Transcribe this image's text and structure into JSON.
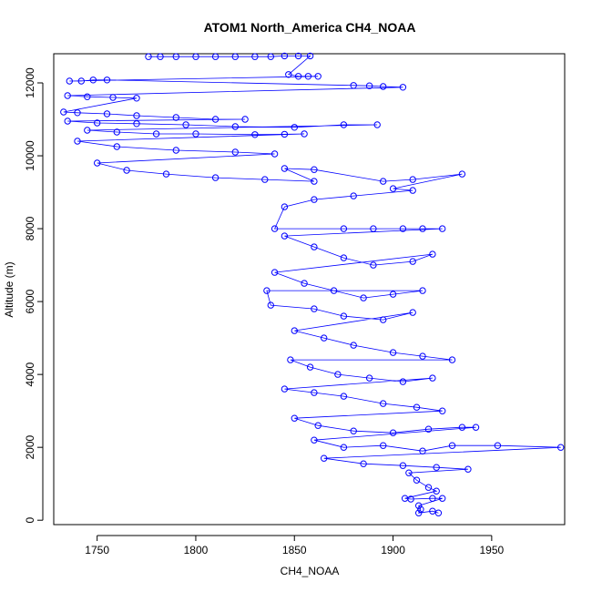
{
  "chart_data": {
    "type": "scatter",
    "title": "ATOM1 North_America CH4_NOAA",
    "xlabel": "CH4_NOAA",
    "ylabel": "Altitude (m)",
    "xlim": [
      1728,
      1987
    ],
    "ylim": [
      -120,
      12800
    ],
    "x_ticks": [
      1750,
      1800,
      1850,
      1900,
      1950
    ],
    "y_ticks": [
      0,
      2000,
      4000,
      6000,
      8000,
      10000,
      12000
    ],
    "grid": false,
    "legend": "none",
    "point_style": "open-circle",
    "color": "#0000ff",
    "series": [
      {
        "points": [
          [
            1776,
            12720
          ],
          [
            1782,
            12720
          ],
          [
            1790,
            12720
          ],
          [
            1800,
            12720
          ],
          [
            1810,
            12720
          ],
          [
            1820,
            12720
          ],
          [
            1830,
            12720
          ],
          [
            1838,
            12720
          ],
          [
            1845,
            12740
          ],
          [
            1852,
            12740
          ],
          [
            1858,
            12740
          ],
          [
            1847,
            12230
          ],
          [
            1852,
            12180
          ],
          [
            1857,
            12180
          ],
          [
            1862,
            12180
          ],
          [
            1736,
            12050
          ],
          [
            1742,
            12050
          ],
          [
            1748,
            12080
          ],
          [
            1755,
            12080
          ],
          [
            1880,
            11930
          ],
          [
            1888,
            11920
          ],
          [
            1895,
            11900
          ],
          [
            1905,
            11880
          ],
          [
            1735,
            11650
          ],
          [
            1745,
            11620
          ],
          [
            1758,
            11600
          ],
          [
            1770,
            11580
          ],
          [
            1733,
            11200
          ],
          [
            1740,
            11180
          ],
          [
            1755,
            11150
          ],
          [
            1770,
            11100
          ],
          [
            1790,
            11050
          ],
          [
            1810,
            11000
          ],
          [
            1825,
            11000
          ],
          [
            1735,
            10950
          ],
          [
            1750,
            10900
          ],
          [
            1770,
            10880
          ],
          [
            1795,
            10850
          ],
          [
            1820,
            10800
          ],
          [
            1850,
            10780
          ],
          [
            1875,
            10850
          ],
          [
            1892,
            10850
          ],
          [
            1745,
            10700
          ],
          [
            1760,
            10650
          ],
          [
            1780,
            10600
          ],
          [
            1800,
            10600
          ],
          [
            1830,
            10580
          ],
          [
            1845,
            10590
          ],
          [
            1855,
            10600
          ],
          [
            1740,
            10400
          ],
          [
            1760,
            10250
          ],
          [
            1790,
            10150
          ],
          [
            1820,
            10100
          ],
          [
            1840,
            10050
          ],
          [
            1750,
            9800
          ],
          [
            1765,
            9600
          ],
          [
            1785,
            9500
          ],
          [
            1810,
            9400
          ],
          [
            1835,
            9350
          ],
          [
            1860,
            9300
          ],
          [
            1845,
            9650
          ],
          [
            1860,
            9620
          ],
          [
            1895,
            9300
          ],
          [
            1910,
            9350
          ],
          [
            1935,
            9500
          ],
          [
            1900,
            9100
          ],
          [
            1910,
            9050
          ],
          [
            1880,
            8900
          ],
          [
            1860,
            8800
          ],
          [
            1845,
            8600
          ],
          [
            1840,
            8000
          ],
          [
            1875,
            8000
          ],
          [
            1890,
            8000
          ],
          [
            1905,
            8000
          ],
          [
            1915,
            8000
          ],
          [
            1925,
            8000
          ],
          [
            1845,
            7800
          ],
          [
            1860,
            7500
          ],
          [
            1875,
            7200
          ],
          [
            1890,
            7000
          ],
          [
            1910,
            7100
          ],
          [
            1920,
            7300
          ],
          [
            1840,
            6800
          ],
          [
            1855,
            6500
          ],
          [
            1870,
            6300
          ],
          [
            1885,
            6100
          ],
          [
            1900,
            6200
          ],
          [
            1915,
            6300
          ],
          [
            1836,
            6300
          ],
          [
            1838,
            5900
          ],
          [
            1860,
            5800
          ],
          [
            1875,
            5600
          ],
          [
            1895,
            5500
          ],
          [
            1910,
            5700
          ],
          [
            1850,
            5200
          ],
          [
            1865,
            5000
          ],
          [
            1880,
            4800
          ],
          [
            1900,
            4600
          ],
          [
            1915,
            4500
          ],
          [
            1930,
            4400
          ],
          [
            1848,
            4400
          ],
          [
            1858,
            4200
          ],
          [
            1872,
            4000
          ],
          [
            1888,
            3900
          ],
          [
            1905,
            3800
          ],
          [
            1920,
            3900
          ],
          [
            1845,
            3600
          ],
          [
            1860,
            3500
          ],
          [
            1875,
            3400
          ],
          [
            1895,
            3200
          ],
          [
            1912,
            3100
          ],
          [
            1925,
            3000
          ],
          [
            1850,
            2800
          ],
          [
            1862,
            2600
          ],
          [
            1880,
            2450
          ],
          [
            1900,
            2400
          ],
          [
            1918,
            2500
          ],
          [
            1935,
            2550
          ],
          [
            1942,
            2550
          ],
          [
            1860,
            2200
          ],
          [
            1875,
            2000
          ],
          [
            1895,
            2050
          ],
          [
            1915,
            1900
          ],
          [
            1930,
            2050
          ],
          [
            1953,
            2050
          ],
          [
            1985,
            2000
          ],
          [
            1865,
            1700
          ],
          [
            1885,
            1550
          ],
          [
            1905,
            1500
          ],
          [
            1922,
            1450
          ],
          [
            1938,
            1400
          ],
          [
            1908,
            1300
          ],
          [
            1912,
            1100
          ],
          [
            1918,
            900
          ],
          [
            1922,
            800
          ],
          [
            1906,
            600
          ],
          [
            1909,
            580
          ],
          [
            1920,
            600
          ],
          [
            1925,
            600
          ],
          [
            1913,
            400
          ],
          [
            1914,
            300
          ],
          [
            1913,
            200
          ],
          [
            1920,
            250
          ],
          [
            1923,
            200
          ]
        ]
      }
    ]
  }
}
